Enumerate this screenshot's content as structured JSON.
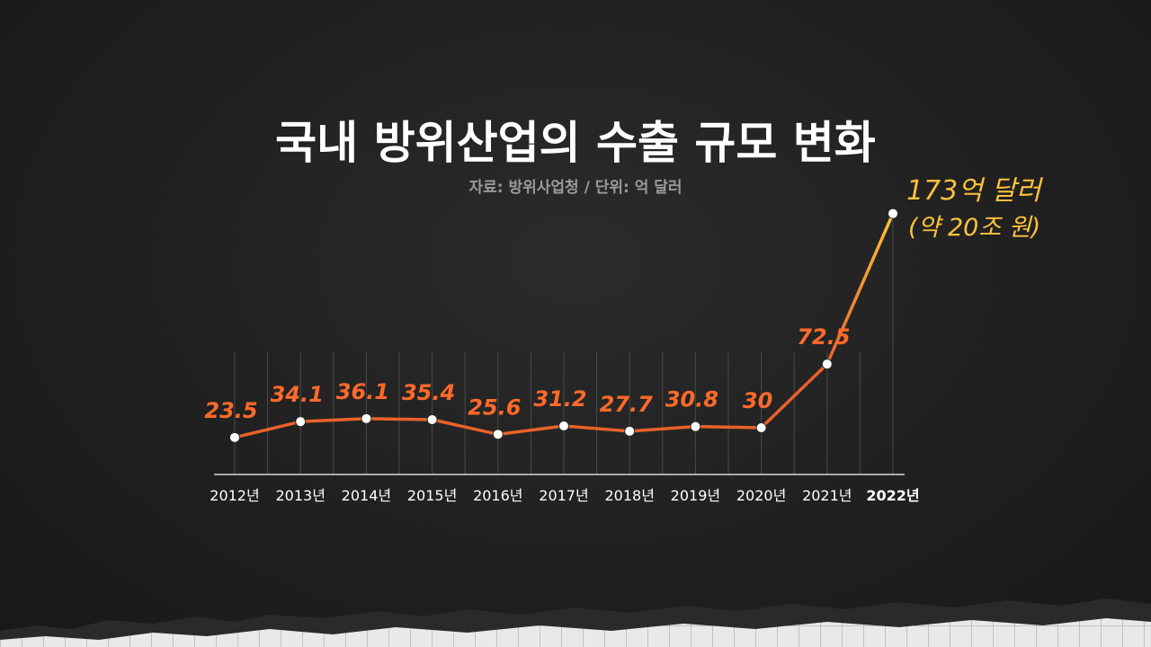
{
  "chart_data": {
    "type": "line",
    "title": "국내 방위산업의 수출 규모 변화",
    "subtitle": "자료: 방위사업청 / 단위: 억 달러",
    "categories": [
      "2012년",
      "2013년",
      "2014년",
      "2015년",
      "2016년",
      "2017년",
      "2018년",
      "2019년",
      "2020년",
      "2021년",
      "2022년"
    ],
    "values": [
      23.5,
      34.1,
      36.1,
      35.4,
      25.6,
      31.2,
      27.7,
      30.8,
      30,
      72.5,
      173
    ],
    "data_labels": [
      "23.5",
      "34.1",
      "36.1",
      "35.4",
      "25.6",
      "31.2",
      "27.7",
      "30.8",
      "30",
      "72.5",
      ""
    ],
    "annotation": {
      "line1": "173억 달러",
      "line2": "(약 20조 원)"
    },
    "ylim": [
      0,
      180
    ],
    "grid": "vertical",
    "colors": {
      "line": "#e8622a",
      "line_highlight": "#f5a83a",
      "marker": "#ffffff",
      "label": "#ff6a2a",
      "annotation": "#ffc23d"
    }
  }
}
